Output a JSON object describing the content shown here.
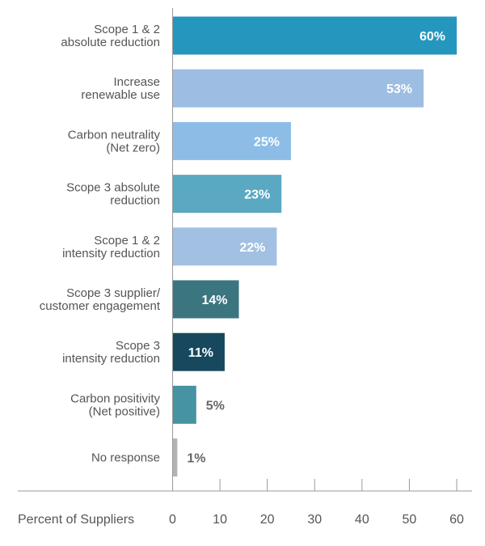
{
  "chart_data": {
    "type": "bar",
    "orientation": "horizontal",
    "xlabel": "Percent of Suppliers",
    "xlim": [
      0,
      60
    ],
    "x_ticks": [
      0,
      10,
      20,
      30,
      40,
      50,
      60
    ],
    "grid": false,
    "categories": [
      [
        "Scope 1 & 2",
        "absolute reduction"
      ],
      [
        "Increase",
        "renewable use"
      ],
      [
        "Carbon neutrality",
        "(Net zero)"
      ],
      [
        "Scope 3 absolute",
        "reduction"
      ],
      [
        "Scope 1 & 2",
        "intensity reduction"
      ],
      [
        "Scope 3 supplier/",
        "customer engagement"
      ],
      [
        "Scope 3",
        "intensity reduction"
      ],
      [
        "Carbon positivity",
        "(Net positive)"
      ],
      [
        "No response"
      ]
    ],
    "values": [
      60,
      53,
      25,
      23,
      22,
      14,
      11,
      5,
      1
    ],
    "value_labels": [
      "60%",
      "53%",
      "25%",
      "23%",
      "22%",
      "14%",
      "11%",
      "5%",
      "1%"
    ],
    "colors": [
      "#2596be",
      "#9dbde2",
      "#8dbde6",
      "#5aa8c2",
      "#a2c0e2",
      "#3b7580",
      "#17485e",
      "#4593a3",
      "#b3b3b3"
    ],
    "label_colors": [
      "#ffffff",
      "#ffffff",
      "#ffffff",
      "#ffffff",
      "#ffffff",
      "#ffffff",
      "#ffffff",
      "#666666",
      "#666666"
    ]
  }
}
